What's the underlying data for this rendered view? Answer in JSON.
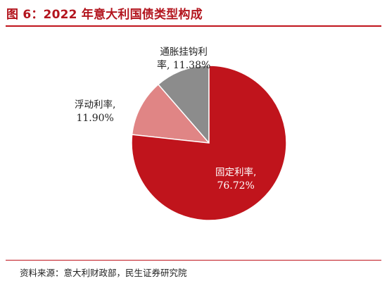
{
  "title": "图 6：2022 年意大利国债类型构成",
  "source": "资料来源：意大利财政部，民生证券研究院",
  "colors": {
    "title": "#b3151e",
    "rule": "#c0141c",
    "fixed": "#c0141c",
    "floating": "#e08585",
    "inflation": "#8c8c8c"
  },
  "chart_data": {
    "type": "pie",
    "title": "2022 年意大利国债类型构成",
    "slices": [
      {
        "name": "通胀挂钩利率",
        "label_line1": "通胀挂钩利",
        "label_line2": "率, 11.38%",
        "value": 11.38,
        "value_text": "11.38%",
        "color": "#8c8c8c",
        "label_color": "#222222"
      },
      {
        "name": "浮动利率",
        "label_line1": "浮动利率,",
        "label_line2": "11.90%",
        "value": 11.9,
        "value_text": "11.90%",
        "color": "#e08585",
        "label_color": "#222222"
      },
      {
        "name": "固定利率",
        "label_line1": "固定利率,",
        "label_line2": "76.72%",
        "value": 76.72,
        "value_text": "76.72%",
        "color": "#c0141c",
        "label_color": "#ffffff"
      }
    ],
    "start_angle_deg": 0,
    "direction": "counterclockwise"
  }
}
